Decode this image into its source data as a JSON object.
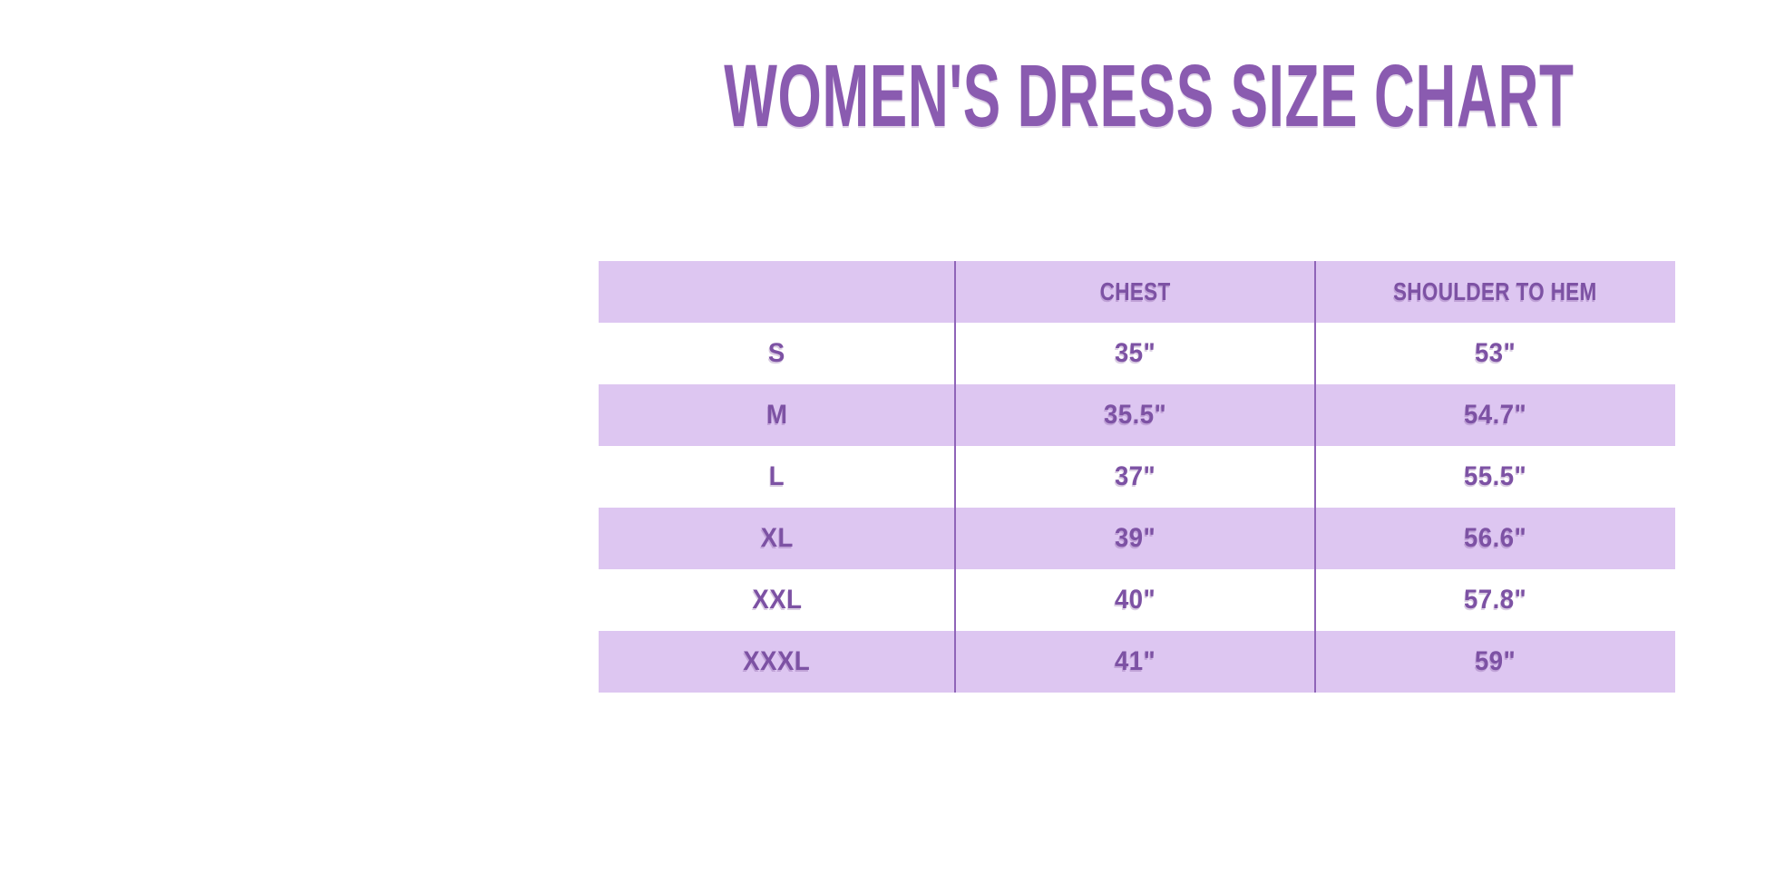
{
  "title": "WOMEN'S DRESS SIZE CHART",
  "colors": {
    "title": "#8a5bb0",
    "table_text": "#7d52a4",
    "row_alt_bg": "#ddc6f1",
    "divider": "#8f64b8",
    "page_bg": "#ffffff"
  },
  "chart_data": {
    "type": "table",
    "title": "WOMEN'S DRESS SIZE CHART",
    "columns": [
      "",
      "CHEST",
      "SHOULDER TO HEM"
    ],
    "rows": [
      {
        "size": "S",
        "chest": "35\"",
        "shoulder_to_hem": "53\""
      },
      {
        "size": "M",
        "chest": "35.5\"",
        "shoulder_to_hem": "54.7\""
      },
      {
        "size": "L",
        "chest": "37\"",
        "shoulder_to_hem": "55.5\""
      },
      {
        "size": "XL",
        "chest": "39\"",
        "shoulder_to_hem": "56.6\""
      },
      {
        "size": "XXL",
        "chest": "40\"",
        "shoulder_to_hem": "57.8\""
      },
      {
        "size": "XXXL",
        "chest": "41\"",
        "shoulder_to_hem": "59\""
      }
    ],
    "layout": {
      "striped": true,
      "stripe_pattern": "header and even data rows lavender, others white",
      "column_dividers": 2
    }
  }
}
